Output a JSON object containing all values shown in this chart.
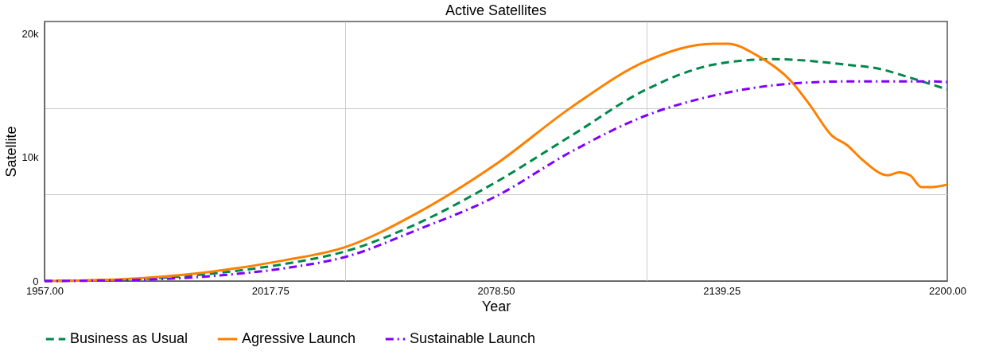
{
  "chart_data": {
    "type": "line",
    "title": "Active Satellites",
    "xlabel": "Year",
    "ylabel": "Satellite",
    "xlim": [
      1957,
      2200
    ],
    "ylim": [
      0,
      21000
    ],
    "xticks": [
      {
        "value": 1957,
        "label": "1957.00"
      },
      {
        "value": 2017.75,
        "label": "2017.75"
      },
      {
        "value": 2038,
        "label": null
      },
      {
        "value": 2078.5,
        "label": "2078.50"
      },
      {
        "value": 2119,
        "label": null
      },
      {
        "value": 2139.25,
        "label": "2139.25"
      },
      {
        "value": 2200,
        "label": "2200.00"
      }
    ],
    "yticks": [
      0,
      {
        "value": 7000,
        "label": null
      },
      {
        "value": 10000,
        "label": "10k"
      },
      {
        "value": 14000,
        "label": null
      },
      {
        "value": 20000,
        "label": "20k"
      }
    ],
    "grid": true,
    "legend": "bottom",
    "series": [
      {
        "name": "Business as Usual",
        "color": "#00884a",
        "line_style": "dashed",
        "x": [
          1957,
          1978,
          2002,
          2022,
          2038,
          2057,
          2078.5,
          2099,
          2119,
          2137,
          2153,
          2173,
          2182,
          2190,
          2200
        ],
        "values": [
          0,
          100,
          600,
          1400,
          2400,
          4600,
          8000,
          11800,
          15500,
          17500,
          17950,
          17500,
          17150,
          16450,
          15500
        ]
      },
      {
        "name": "Agressive Launch",
        "color": "#ff8000",
        "line_style": "solid",
        "x": [
          1957,
          1978,
          2002,
          2022,
          2038,
          2057,
          2078.5,
          2099,
          2119,
          2137,
          2141,
          2148.5,
          2158,
          2163,
          2169,
          2173,
          2177,
          2184,
          2187,
          2190,
          2193,
          2196,
          2200
        ],
        "values": [
          0,
          150,
          750,
          1700,
          2750,
          5450,
          9450,
          14100,
          17800,
          19200,
          19200,
          18300,
          16150,
          14250,
          11750,
          11000,
          9850,
          8550,
          8800,
          8550,
          7600,
          7600,
          7800
        ]
      },
      {
        "name": "Sustainable Launch",
        "color": "#8000ff",
        "line_style": "dashdot",
        "x": [
          1957,
          1978,
          2002,
          2022,
          2038,
          2057,
          2078.5,
          2099,
          2119,
          2137,
          2157,
          2173,
          2196,
          2200
        ],
        "values": [
          0,
          60,
          400,
          1050,
          1950,
          4100,
          6850,
          10500,
          13400,
          15000,
          15950,
          16150,
          16150,
          16100
        ]
      }
    ]
  }
}
